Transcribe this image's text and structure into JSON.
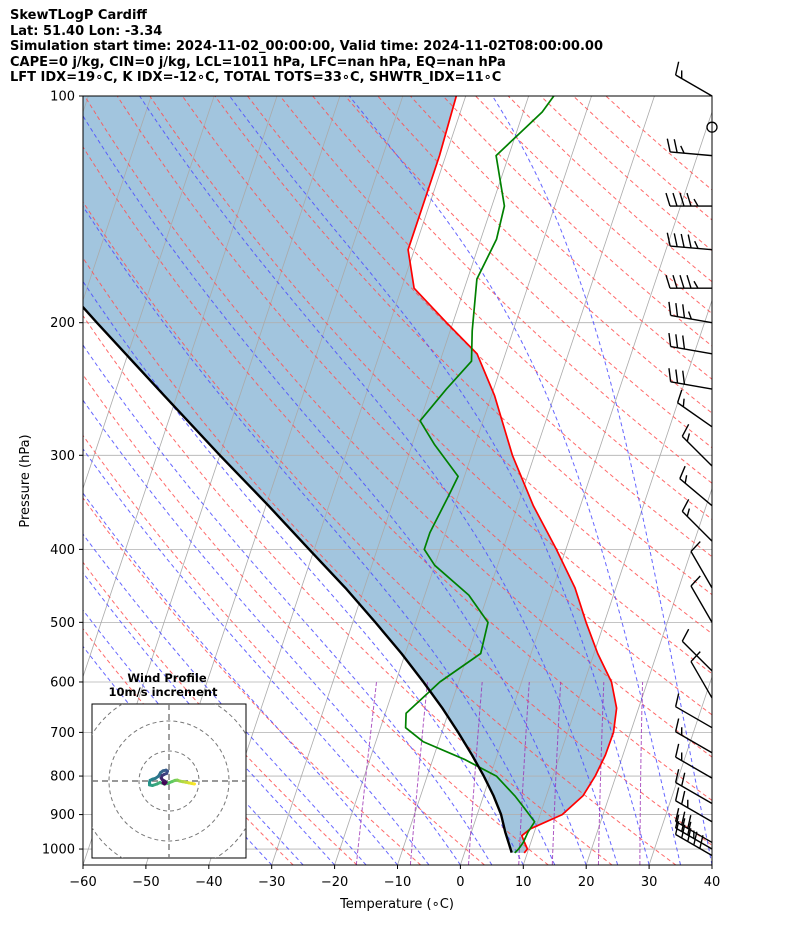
{
  "header": {
    "line1": "SkewTLogP Cardiff",
    "line2": "Lat: 51.40   Lon: -3.34",
    "line3": "Simulation start time: 2024-11-02_00:00:00, Valid time: 2024-11-02T08:00:00.00",
    "line4": "CAPE=0 j/kg, CIN=0 j/kg, LCL=1011 hPa, LFC=nan hPa, EQ=nan hPa",
    "line5": "LFT IDX=19∘C, K IDX=-12∘C, TOTAL TOTS=33∘C, SHWTR_IDX=11∘C"
  },
  "chart_data": {
    "type": "line",
    "skew_deg_per_log_decade": 40,
    "xlabel": "Temperature (∘C)",
    "ylabel": "Pressure (hPa)",
    "xlim": [
      -60,
      40
    ],
    "ylim_hpa": [
      1050,
      100
    ],
    "x_ticks": [
      "−60",
      "−50",
      "−40",
      "−30",
      "−20",
      "−10",
      "0",
      "10",
      "20",
      "30",
      "40"
    ],
    "x_tick_values": [
      -60,
      -50,
      -40,
      -30,
      -20,
      -10,
      0,
      10,
      20,
      30,
      40
    ],
    "y_ticks": [
      "100",
      "200",
      "300",
      "400",
      "500",
      "600",
      "700",
      "800",
      "900",
      "1000"
    ],
    "y_tick_values": [
      100,
      200,
      300,
      400,
      500,
      600,
      700,
      800,
      900,
      1000
    ],
    "grid": true,
    "colors": {
      "temperature": "#ff0000",
      "dewpoint": "#008000",
      "parcel": "#000000",
      "shade": "#a2c5de",
      "dry_adiabats": "#ff5050",
      "moist_adiabats": "#4b4bff",
      "mixing_ratio": "#9b30b4",
      "isotherms": "#aaaaaa"
    },
    "series": [
      {
        "key": "temperature",
        "points": [
          [
            1012,
            9.5
          ],
          [
            1000,
            9.8
          ],
          [
            980,
            9
          ],
          [
            960,
            8.2
          ],
          [
            940,
            9.2
          ],
          [
            900,
            13.5
          ],
          [
            850,
            15.8
          ],
          [
            800,
            16.7
          ],
          [
            750,
            17.2
          ],
          [
            700,
            17.3
          ],
          [
            650,
            16.5
          ],
          [
            600,
            14.3
          ],
          [
            550,
            10.6
          ],
          [
            500,
            7.1
          ],
          [
            450,
            3.5
          ],
          [
            400,
            -1.5
          ],
          [
            350,
            -7.5
          ],
          [
            300,
            -13.5
          ],
          [
            250,
            -19.5
          ],
          [
            220,
            -24.5
          ],
          [
            200,
            -31
          ],
          [
            180,
            -38
          ],
          [
            160,
            -41
          ],
          [
            140,
            -41
          ],
          [
            120,
            -41
          ],
          [
            100,
            -41.5
          ]
        ]
      },
      {
        "key": "dewpoint",
        "points": [
          [
            1012,
            8
          ],
          [
            1000,
            8.4
          ],
          [
            980,
            8.8
          ],
          [
            950,
            9
          ],
          [
            920,
            9.5
          ],
          [
            880,
            7
          ],
          [
            850,
            5
          ],
          [
            800,
            1
          ],
          [
            760,
            -5
          ],
          [
            720,
            -12.5
          ],
          [
            690,
            -16
          ],
          [
            660,
            -16.7
          ],
          [
            600,
            -13
          ],
          [
            550,
            -8
          ],
          [
            500,
            -8.5
          ],
          [
            460,
            -13
          ],
          [
            420,
            -20
          ],
          [
            400,
            -22.5
          ],
          [
            380,
            -22.5
          ],
          [
            340,
            -21.5
          ],
          [
            320,
            -21
          ],
          [
            290,
            -26.5
          ],
          [
            270,
            -30
          ],
          [
            245,
            -27.5
          ],
          [
            225,
            -25
          ],
          [
            205,
            -26.5
          ],
          [
            175,
            -28.5
          ],
          [
            155,
            -27.5
          ],
          [
            140,
            -28
          ],
          [
            120,
            -32
          ],
          [
            105,
            -27
          ],
          [
            100,
            -26
          ]
        ]
      },
      {
        "key": "parcel",
        "points": [
          [
            1011,
            7.5
          ],
          [
            950,
            5.4
          ],
          [
            900,
            3.8
          ],
          [
            850,
            1.6
          ],
          [
            800,
            -1.0
          ],
          [
            750,
            -4.0
          ],
          [
            700,
            -7.4
          ],
          [
            650,
            -11.2
          ],
          [
            600,
            -15.6
          ],
          [
            550,
            -20.6
          ],
          [
            500,
            -26.4
          ],
          [
            450,
            -33.0
          ],
          [
            400,
            -40.8
          ],
          [
            350,
            -49.6
          ],
          [
            300,
            -60.0
          ],
          [
            250,
            -72.0
          ],
          [
            200,
            -86.6
          ],
          [
            150,
            -105.0
          ],
          [
            100,
            -130.6
          ]
        ]
      }
    ],
    "wind_barbs": [
      {
        "p": 1020,
        "dir": 300,
        "speed": 50
      },
      {
        "p": 1000,
        "dir": 300,
        "speed": 35
      },
      {
        "p": 980,
        "dir": 300,
        "speed": 30
      },
      {
        "p": 920,
        "dir": 300,
        "speed": 25
      },
      {
        "p": 870,
        "dir": 300,
        "speed": 20
      },
      {
        "p": 805,
        "dir": 300,
        "speed": 15
      },
      {
        "p": 745,
        "dir": 300,
        "speed": 15
      },
      {
        "p": 690,
        "dir": 300,
        "speed": 10
      },
      {
        "p": 630,
        "dir": 330,
        "speed": 10
      },
      {
        "p": 580,
        "dir": 315,
        "speed": 10
      },
      {
        "p": 500,
        "dir": 330,
        "speed": 10
      },
      {
        "p": 450,
        "dir": 330,
        "speed": 10
      },
      {
        "p": 390,
        "dir": 315,
        "speed": 15
      },
      {
        "p": 350,
        "dir": 310,
        "speed": 15
      },
      {
        "p": 310,
        "dir": 315,
        "speed": 15
      },
      {
        "p": 275,
        "dir": 305,
        "speed": 15
      },
      {
        "p": 245,
        "dir": 280,
        "speed": 30
      },
      {
        "p": 220,
        "dir": 280,
        "speed": 30
      },
      {
        "p": 200,
        "dir": 280,
        "speed": 35
      },
      {
        "p": 180,
        "dir": 270,
        "speed": 45
      },
      {
        "p": 160,
        "dir": 275,
        "speed": 45
      },
      {
        "p": 140,
        "dir": 270,
        "speed": 45
      },
      {
        "p": 120,
        "dir": 275,
        "speed": 25
      },
      {
        "p": 110,
        "dir": 0,
        "speed": 0
      },
      {
        "p": 100,
        "dir": 300,
        "speed": 15
      }
    ],
    "hodograph": {
      "title": "Wind Profile",
      "subtitle": "10m/s increment",
      "ring_step_ms": 10,
      "rings": 3,
      "points": [
        [
          8.5,
          -1.0
        ],
        [
          7.5,
          -0.8
        ],
        [
          6.5,
          -0.6
        ],
        [
          5.5,
          -0.4
        ],
        [
          4.5,
          -0.2
        ],
        [
          3.5,
          0.0
        ],
        [
          2.8,
          0.3
        ],
        [
          2.0,
          0.2
        ],
        [
          1.0,
          -0.2
        ],
        [
          0.2,
          -0.5
        ],
        [
          -0.5,
          -0.8
        ],
        [
          -1.5,
          -1.0
        ],
        [
          -3.0,
          -0.5
        ],
        [
          -4.0,
          -1.0
        ],
        [
          -5.5,
          -1.5
        ],
        [
          -6.5,
          -1.3
        ],
        [
          -6.5,
          -0.5
        ],
        [
          -6.3,
          0.2
        ],
        [
          -5.5,
          0.6
        ],
        [
          -4.5,
          0.9
        ],
        [
          -3.5,
          1.6
        ],
        [
          -2.8,
          2.8
        ],
        [
          -2.0,
          3.4
        ],
        [
          -1.0,
          3.6
        ],
        [
          -0.5,
          3.3
        ],
        [
          -0.8,
          2.5
        ],
        [
          -1.6,
          2.2
        ],
        [
          -2.3,
          1.8
        ],
        [
          -2.6,
          1.0
        ],
        [
          -2.2,
          0.4
        ],
        [
          -1.5,
          0.0
        ],
        [
          -1.0,
          -0.5
        ],
        [
          -1.5,
          -1.0
        ],
        [
          -2.0,
          -0.6
        ]
      ]
    }
  }
}
